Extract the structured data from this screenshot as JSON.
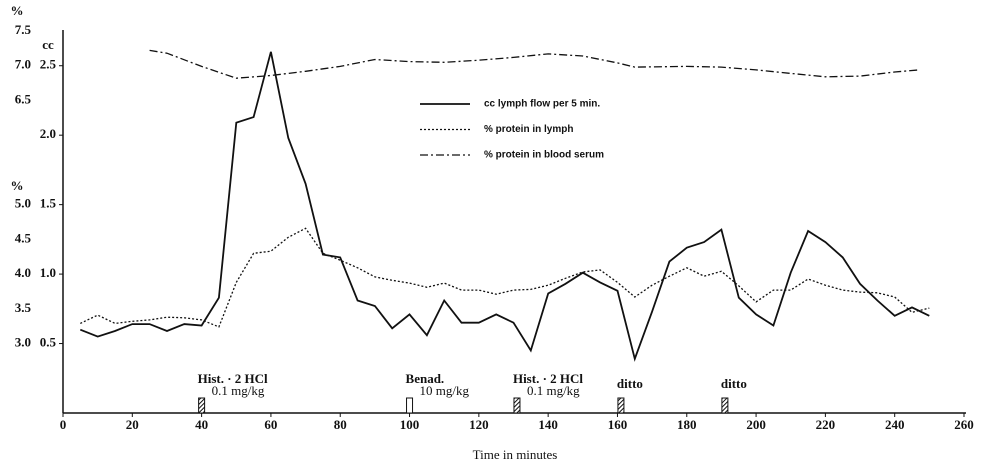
{
  "chart_data": {
    "type": "line",
    "xlabel": "Time in minutes",
    "ylabel": "cc",
    "y2label": [
      "%",
      "%"
    ],
    "xlim": [
      0,
      260
    ],
    "xticks": [
      0,
      20,
      40,
      60,
      80,
      100,
      120,
      140,
      160,
      180,
      200,
      220,
      240,
      260
    ],
    "ylim": [
      0,
      2.75
    ],
    "yticks": [
      0.5,
      {
        "value": 1,
        "label": "1.0"
      },
      1.5,
      {
        "value": 2,
        "label": "2.0"
      },
      2.5
    ],
    "y2lim": [
      2.0,
      7.5
    ],
    "y2ticks": [
      {
        "value": 3,
        "label": "3.0"
      },
      3.5,
      {
        "value": 4,
        "label": "4.0"
      },
      4.5,
      {
        "value": 5,
        "label": "5.0"
      },
      6.5,
      {
        "value": 7,
        "label": "7.0"
      },
      7.5
    ],
    "x": [
      5,
      10,
      15,
      20,
      25,
      30,
      35,
      40,
      45,
      50,
      55,
      60,
      65,
      70,
      75,
      80,
      85,
      90,
      95,
      100,
      105,
      110,
      115,
      120,
      125,
      130,
      135,
      140,
      145,
      150,
      155,
      160,
      165,
      170,
      175,
      180,
      185,
      190,
      195,
      200,
      205,
      210,
      215,
      220,
      225,
      230,
      235,
      240,
      245,
      250
    ],
    "series": [
      {
        "name": "cc  lymph flow per 5 min.",
        "color": "#111111",
        "style": "solid",
        "values": [
          0.6,
          0.55,
          0.59,
          0.64,
          0.64,
          0.59,
          0.64,
          0.63,
          0.83,
          2.09,
          2.13,
          2.6,
          1.98,
          1.65,
          1.14,
          1.12,
          0.81,
          0.77,
          0.61,
          0.71,
          0.56,
          0.81,
          0.65,
          0.65,
          0.71,
          0.65,
          0.45,
          0.86,
          0.93,
          1.01,
          0.94,
          0.88,
          0.39,
          0.73,
          1.09,
          1.19,
          1.23,
          1.32,
          0.83,
          0.71,
          0.63,
          1.01,
          1.31,
          1.23,
          1.12,
          0.93,
          0.81,
          0.7,
          0.76,
          0.7
        ]
      },
      {
        "name": "%  protein in lymph",
        "color": "#111111",
        "style": "dotted",
        "axis": "y2",
        "values": [
          3.29,
          3.41,
          3.29,
          3.32,
          3.34,
          3.38,
          3.37,
          3.34,
          3.24,
          3.88,
          4.3,
          4.33,
          4.53,
          4.66,
          4.3,
          4.2,
          4.09,
          3.96,
          3.91,
          3.87,
          3.81,
          3.87,
          3.77,
          3.77,
          3.71,
          3.77,
          3.78,
          3.84,
          3.94,
          4.03,
          4.06,
          3.88,
          3.67,
          3.84,
          3.97,
          4.09,
          3.97,
          4.04,
          3.83,
          3.6,
          3.77,
          3.77,
          3.93,
          3.84,
          3.77,
          3.74,
          3.73,
          3.67,
          3.45,
          3.51
        ]
      },
      {
        "name": "%  protein in blood serum",
        "color": "#111111",
        "style": "dashdot",
        "axis": "y2",
        "x": [
          25,
          30,
          40,
          50,
          60,
          70,
          80,
          90,
          100,
          110,
          120,
          130,
          140,
          150,
          160,
          165,
          180,
          190,
          200,
          210,
          220,
          230,
          240,
          247
        ],
        "values": [
          7.22,
          7.18,
          6.99,
          6.82,
          6.86,
          6.92,
          6.99,
          7.09,
          7.06,
          7.05,
          7.08,
          7.12,
          7.17,
          7.14,
          7.04,
          6.98,
          6.99,
          6.98,
          6.94,
          6.89,
          6.84,
          6.85,
          6.91,
          6.94
        ]
      }
    ],
    "annotations": [
      {
        "x": 40,
        "marker": "hatched",
        "lines": [
          "Hist. · 2 HCl",
          "0.1 mg/kg"
        ]
      },
      {
        "x": 100,
        "marker": "open",
        "lines": [
          "Benad.",
          "10 mg/kg"
        ]
      },
      {
        "x": 131,
        "marker": "hatched",
        "lines": [
          "Hist. · 2 HCl",
          "0.1 mg/kg"
        ]
      },
      {
        "x": 161,
        "marker": "hatched",
        "lines": [
          "ditto"
        ]
      },
      {
        "x": 191,
        "marker": "hatched",
        "lines": [
          "ditto"
        ]
      }
    ]
  }
}
